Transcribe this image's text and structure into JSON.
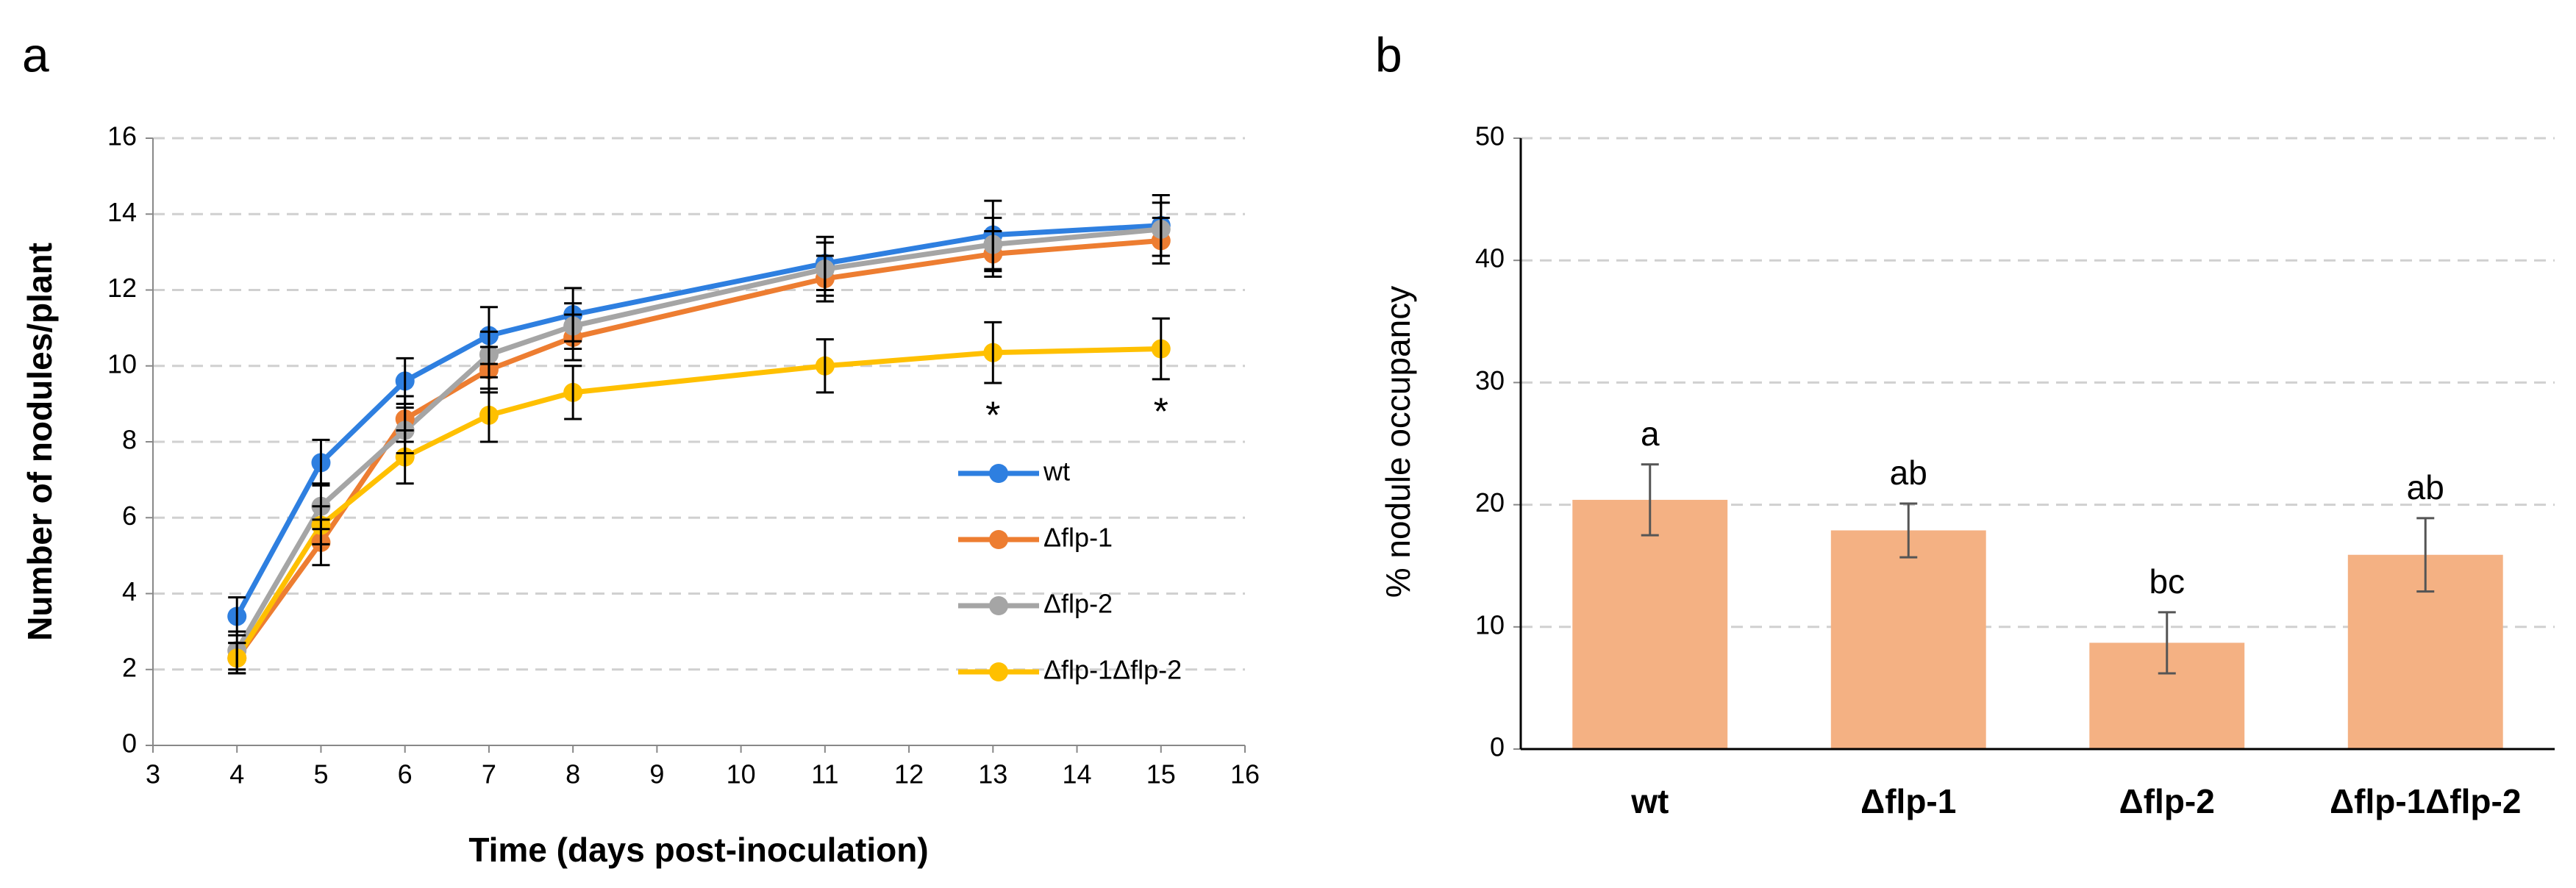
{
  "chart_data": [
    {
      "type": "line",
      "panel_label": "a",
      "x_label": "Time (days post-inoculation)",
      "y_label": "Number of nodules/plant",
      "x": [
        4,
        5,
        6,
        7,
        8,
        11,
        13,
        15
      ],
      "series": [
        {
          "name": "wt",
          "color": "#2e7fe0",
          "values": [
            3.4,
            7.45,
            9.6,
            10.8,
            11.35,
            12.7,
            13.45,
            13.7
          ],
          "errors": [
            0.5,
            0.6,
            0.6,
            0.75,
            0.7,
            0.7,
            0.9,
            0.8
          ]
        },
        {
          "name": "Δflp-1",
          "color": "#ed7d31",
          "values": [
            2.3,
            5.35,
            8.6,
            9.9,
            10.75,
            12.3,
            12.95,
            13.3
          ],
          "errors": [
            0.4,
            0.6,
            0.6,
            0.6,
            0.6,
            0.6,
            0.6,
            0.6
          ]
        },
        {
          "name": "Δflp-2",
          "color": "#a5a5a5",
          "values": [
            2.5,
            6.3,
            8.3,
            10.3,
            11.05,
            12.55,
            13.2,
            13.6
          ],
          "errors": [
            0.5,
            0.6,
            0.6,
            0.6,
            0.6,
            0.7,
            0.7,
            0.7
          ]
        },
        {
          "name": "Δflp-1Δflp-2",
          "color": "#ffc000",
          "values": [
            2.3,
            5.8,
            7.6,
            8.7,
            9.3,
            10.0,
            10.35,
            10.45
          ],
          "errors": [
            0.4,
            0.5,
            0.7,
            0.7,
            0.7,
            0.7,
            0.8,
            0.8
          ]
        }
      ],
      "annotations": [
        {
          "text": "*",
          "x": 13
        },
        {
          "text": "*",
          "x": 15
        }
      ],
      "xlim": [
        3,
        16
      ],
      "xticks": [
        3,
        4,
        5,
        6,
        7,
        8,
        9,
        10,
        11,
        12,
        13,
        14,
        15,
        16
      ],
      "ylim": [
        0,
        16
      ],
      "yticks": [
        0,
        2,
        4,
        6,
        8,
        10,
        12,
        14,
        16
      ],
      "grid": true,
      "legend": "lower right"
    },
    {
      "type": "bar",
      "panel_label": "b",
      "y_label": "% nodule occupancy",
      "categories": [
        "wt",
        "Δflp-1",
        "Δflp-2",
        "Δflp-1Δflp-2"
      ],
      "values": [
        20.4,
        17.9,
        8.7,
        15.9
      ],
      "errors": [
        2.9,
        2.2,
        2.5,
        3.0
      ],
      "annotations": [
        "a",
        "ab",
        "bc",
        "ab"
      ],
      "color": "#f4b183",
      "ylim": [
        0,
        50
      ],
      "yticks": [
        0,
        10,
        20,
        30,
        40,
        50
      ],
      "grid": true
    }
  ]
}
